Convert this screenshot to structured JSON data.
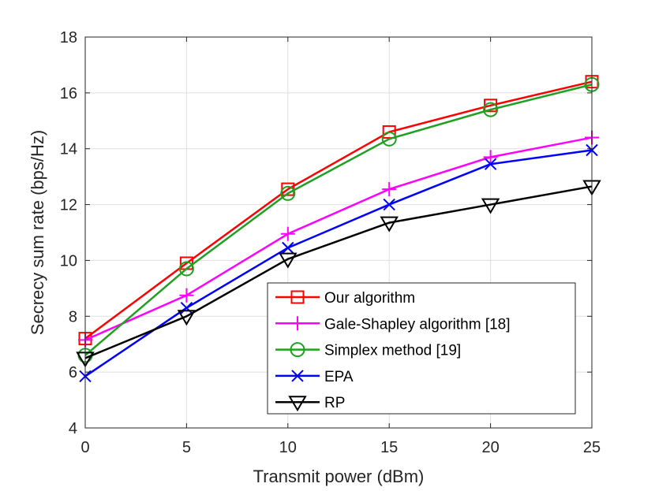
{
  "chart_data": {
    "type": "line",
    "title": "",
    "xlabel": "Transmit power (dBm)",
    "ylabel": "Secrecy sum rate (bps/Hz)",
    "xlim": [
      0,
      25
    ],
    "ylim": [
      4,
      18
    ],
    "x": [
      0,
      5,
      10,
      15,
      20,
      25
    ],
    "xticks": [
      "0",
      "5",
      "10",
      "15",
      "20",
      "25"
    ],
    "yticks": [
      "4",
      "6",
      "8",
      "10",
      "12",
      "14",
      "16",
      "18"
    ],
    "grid": true,
    "legend_location": "bottom-right",
    "series": [
      {
        "name": "Our algorithm",
        "color": "#ff0000",
        "marker": "square",
        "values": [
          7.2,
          9.9,
          12.55,
          14.6,
          15.55,
          16.4
        ]
      },
      {
        "name": "Gale-Shapley algorithm [18]",
        "color": "#ff00ff",
        "marker": "plus",
        "values": [
          7.15,
          8.75,
          10.95,
          12.55,
          13.7,
          14.4
        ]
      },
      {
        "name": "Simplex method [19]",
        "color": "#20a020",
        "marker": "circle",
        "values": [
          6.6,
          9.7,
          12.4,
          14.35,
          15.4,
          16.3
        ]
      },
      {
        "name": "EPA",
        "color": "#0000ff",
        "marker": "x",
        "values": [
          5.85,
          8.3,
          10.45,
          12.0,
          13.45,
          13.95
        ]
      },
      {
        "name": "RP",
        "color": "#000000",
        "marker": "triangle-down",
        "values": [
          6.5,
          8.0,
          10.05,
          11.35,
          12.0,
          12.65
        ]
      }
    ]
  }
}
